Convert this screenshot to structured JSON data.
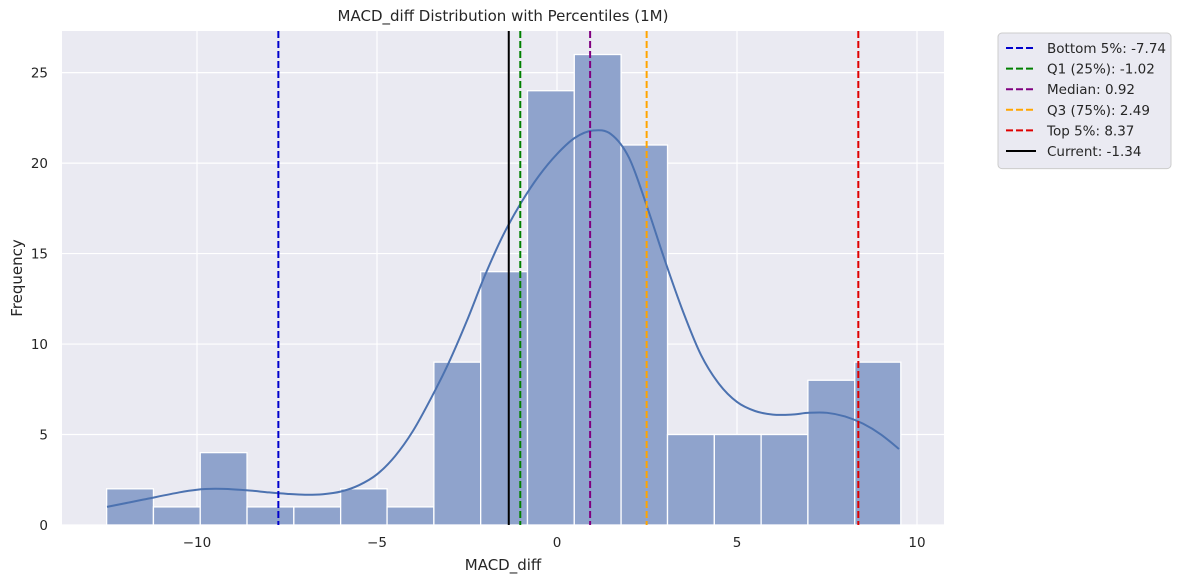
{
  "chart_data": {
    "type": "bar",
    "title": "MACD_diff Distribution with Percentiles (1M)",
    "xlabel": "MACD_diff",
    "ylabel": "Frequency",
    "xlim": [
      -13.75,
      10.75
    ],
    "ylim": [
      0,
      27.3
    ],
    "grid": true,
    "x_ticks": [
      {
        "value": -10,
        "label": "−10"
      },
      {
        "value": -5,
        "label": "−5"
      },
      {
        "value": 0,
        "label": "0"
      },
      {
        "value": 5,
        "label": "5"
      },
      {
        "value": 10,
        "label": "10"
      }
    ],
    "y_ticks": [
      {
        "value": 0,
        "label": "0"
      },
      {
        "value": 5,
        "label": "5"
      },
      {
        "value": 10,
        "label": "10"
      },
      {
        "value": 15,
        "label": "15"
      },
      {
        "value": 20,
        "label": "20"
      },
      {
        "value": 25,
        "label": "25"
      }
    ],
    "bin_edges": [
      -12.51,
      -11.21,
      -9.91,
      -8.61,
      -7.31,
      -6.01,
      -4.72,
      -3.42,
      -2.12,
      -0.82,
      0.48,
      1.78,
      3.07,
      4.37,
      5.67,
      6.97,
      8.27,
      9.55
    ],
    "counts": [
      2,
      1,
      4,
      1,
      1,
      2,
      1,
      9,
      14,
      24,
      26,
      21,
      5,
      5,
      5,
      8,
      9
    ],
    "bar_color": "#8fa3cc",
    "kde": {
      "color": "#4c72b0",
      "x": [
        -12.5,
        -11.5,
        -10.5,
        -10.0,
        -9.5,
        -9.0,
        -8.5,
        -8.0,
        -7.5,
        -7.0,
        -6.5,
        -6.0,
        -5.5,
        -5.0,
        -4.5,
        -4.0,
        -3.5,
        -3.0,
        -2.5,
        -2.0,
        -1.5,
        -1.0,
        -0.5,
        0.0,
        0.5,
        1.0,
        1.5,
        2.0,
        2.5,
        3.0,
        3.5,
        4.0,
        4.5,
        5.0,
        5.5,
        6.0,
        6.5,
        7.0,
        7.5,
        8.0,
        8.5,
        9.0,
        9.5
      ],
      "y": [
        1.0,
        1.4,
        1.8,
        1.95,
        2.0,
        1.97,
        1.9,
        1.8,
        1.72,
        1.67,
        1.7,
        1.85,
        2.2,
        2.8,
        3.8,
        5.2,
        7.0,
        9.0,
        11.3,
        13.8,
        16.0,
        17.8,
        19.3,
        20.5,
        21.4,
        21.8,
        21.6,
        20.3,
        17.6,
        14.6,
        11.8,
        9.4,
        7.8,
        6.8,
        6.3,
        6.1,
        6.1,
        6.2,
        6.2,
        6.0,
        5.6,
        5.0,
        4.2
      ]
    },
    "reference_lines": [
      {
        "name": "Bottom 5%: -7.74",
        "value": -7.74,
        "color": "#0000cc",
        "style": "dashed"
      },
      {
        "name": "Q1 (25%): -1.02",
        "value": -1.02,
        "color": "#008000",
        "style": "dashed"
      },
      {
        "name": "Median: 0.92",
        "value": 0.92,
        "color": "#800080",
        "style": "dashed"
      },
      {
        "name": "Q3 (75%): 2.49",
        "value": 2.49,
        "color": "#ffa500",
        "style": "dashed"
      },
      {
        "name": "Top 5%: 8.37",
        "value": 8.37,
        "color": "#e00000",
        "style": "dashed"
      },
      {
        "name": "Current: -1.34",
        "value": -1.34,
        "color": "#000000",
        "style": "solid"
      }
    ],
    "legend_position": "outside-top-right",
    "background": "#eaeaf2",
    "grid_color": "#ffffff"
  }
}
